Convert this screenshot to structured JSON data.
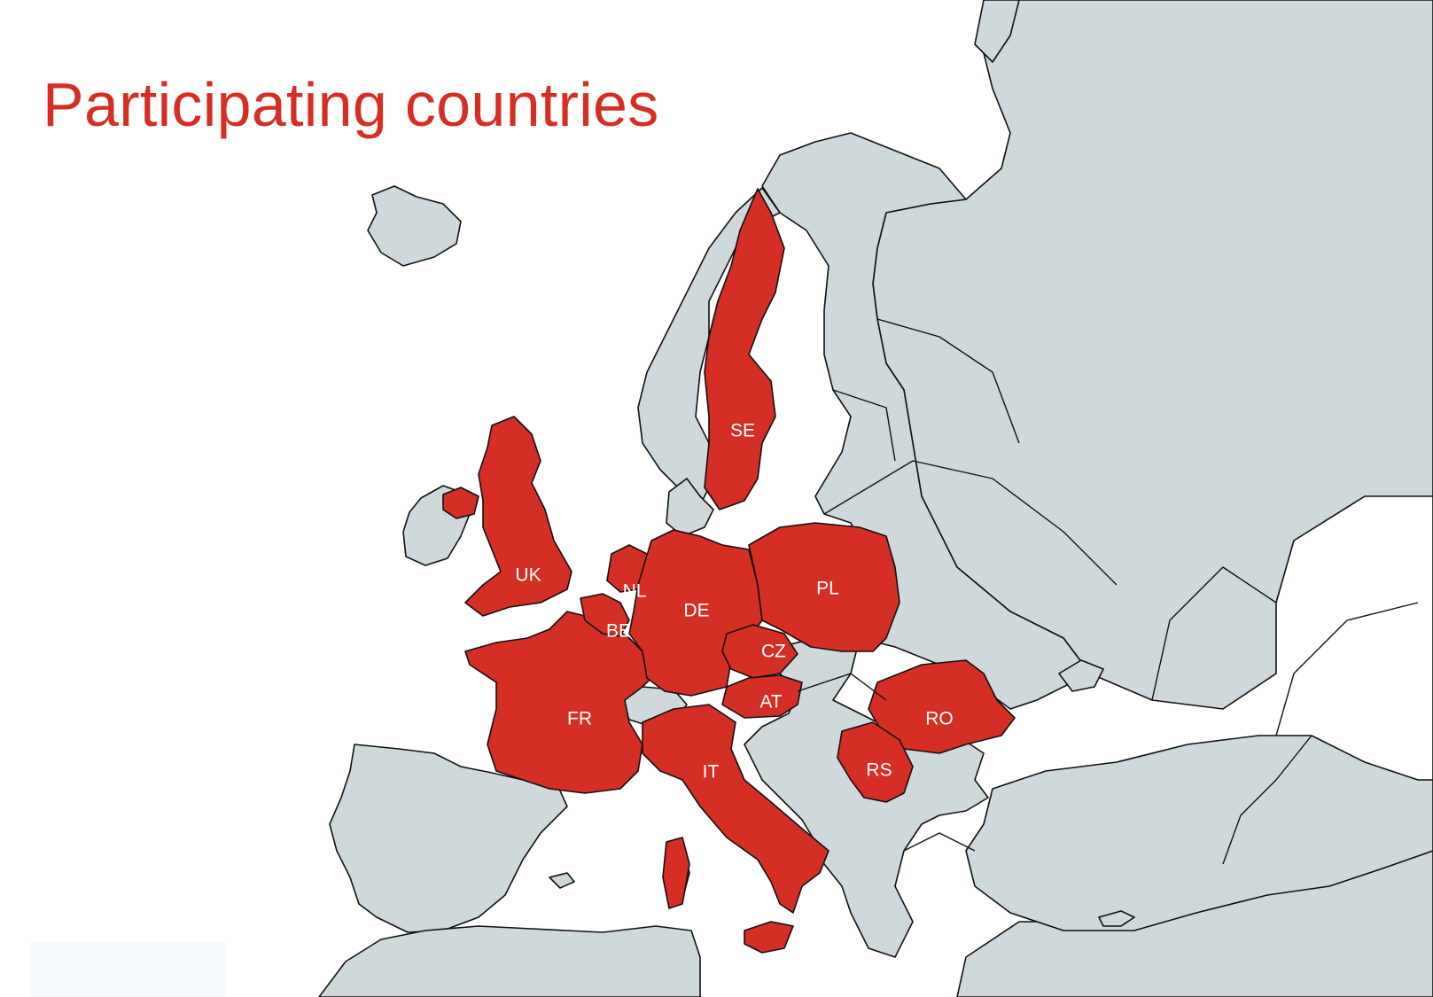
{
  "title": "Participating countries",
  "colors": {
    "participating": "#d42e25",
    "other_land": "#cfd8db",
    "sea": "#ffffff",
    "borders": "#111111",
    "title": "#d42e25",
    "labels": "#ffffff"
  },
  "countries": [
    {
      "code": "SE",
      "label": "SE"
    },
    {
      "code": "UK",
      "label": "UK"
    },
    {
      "code": "NL",
      "label": "NL"
    },
    {
      "code": "BE",
      "label": "BE"
    },
    {
      "code": "DE",
      "label": "DE"
    },
    {
      "code": "PL",
      "label": "PL"
    },
    {
      "code": "CZ",
      "label": "CZ"
    },
    {
      "code": "AT",
      "label": "AT"
    },
    {
      "code": "FR",
      "label": "FR"
    },
    {
      "code": "IT",
      "label": "IT"
    },
    {
      "code": "RO",
      "label": "RO"
    },
    {
      "code": "RS",
      "label": "RS"
    }
  ]
}
